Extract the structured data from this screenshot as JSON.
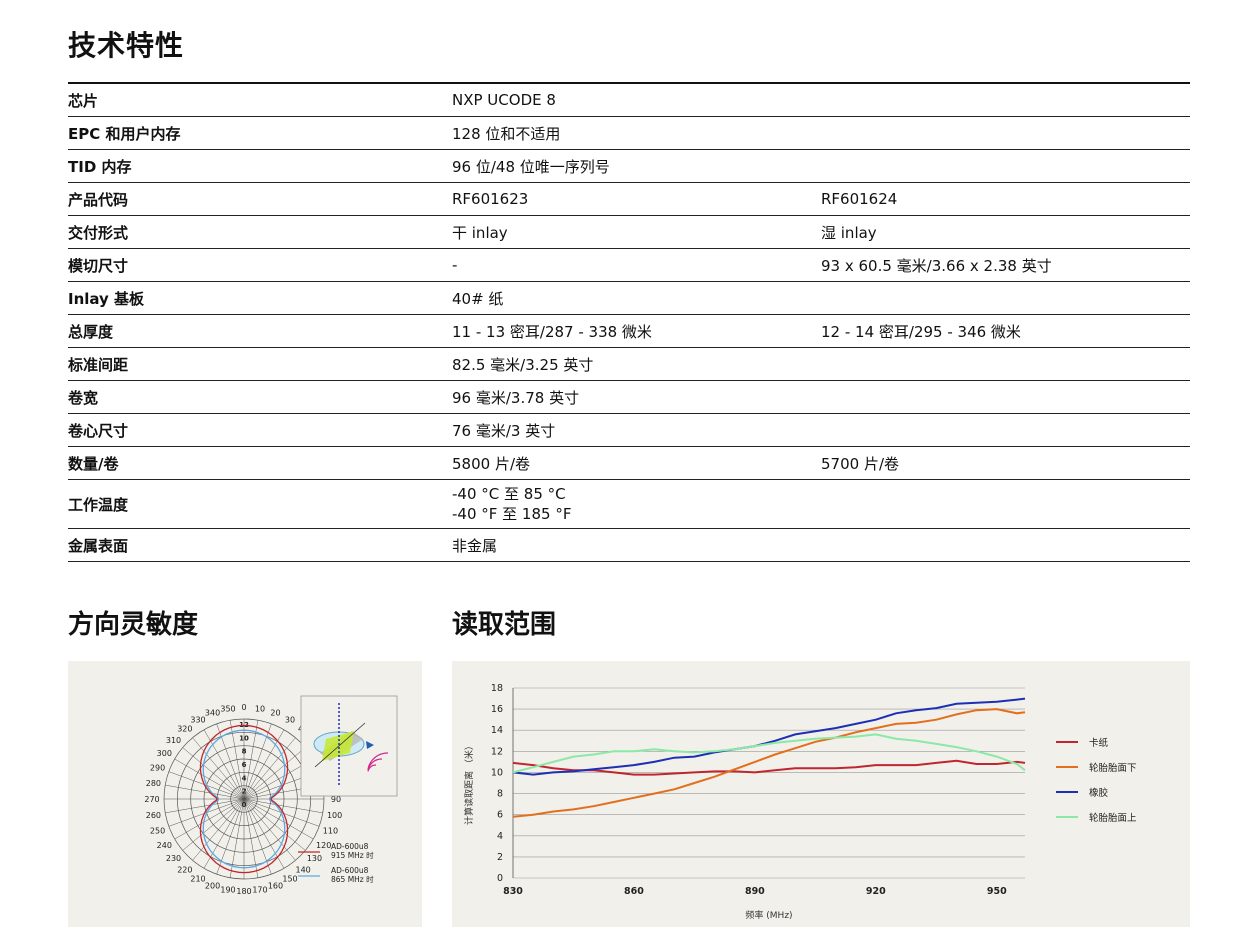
{
  "title": "技术特性",
  "specs": [
    {
      "key": "芯片",
      "v1": "NXP UCODE 8",
      "v2": ""
    },
    {
      "key": "EPC 和用户内存",
      "v1": "128 位和不适用",
      "v2": ""
    },
    {
      "key": "TID 内存",
      "v1": "96 位/48 位唯一序列号",
      "v2": ""
    },
    {
      "key": "产品代码",
      "v1": "RF601623",
      "v2": "RF601624"
    },
    {
      "key": "交付形式",
      "v1": "干 inlay",
      "v2": "湿 inlay"
    },
    {
      "key": "模切尺寸",
      "v1": "-",
      "v2": "93 x 60.5 毫米/3.66 x 2.38 英寸"
    },
    {
      "key": "Inlay 基板",
      "v1": "40# 纸",
      "v2": ""
    },
    {
      "key": "总厚度",
      "v1": "11 - 13 密耳/287 - 338 微米",
      "v2": "12 - 14 密耳/295 - 346 微米"
    },
    {
      "key": "标准间距",
      "v1": "82.5 毫米/3.25 英寸",
      "v2": ""
    },
    {
      "key": "卷宽",
      "v1": "96 毫米/3.78 英寸",
      "v2": ""
    },
    {
      "key": "卷心尺寸",
      "v1": "76 毫米/3 英寸",
      "v2": ""
    },
    {
      "key": "数量/卷",
      "v1": "5800 片/卷",
      "v2": "5700 片/卷"
    },
    {
      "key": "工作温度",
      "v1": "-40 °C 至 85 °C",
      "v1b": "-40 °F 至 185 °F",
      "v2": ""
    },
    {
      "key": "金属表面",
      "v1": "非金属",
      "v2": ""
    }
  ],
  "directional": {
    "title": "方向灵敏度",
    "angle_labels": [
      "0",
      "10",
      "20",
      "30",
      "40",
      "50",
      "60",
      "70",
      "80",
      "90",
      "100",
      "110",
      "120",
      "130",
      "140",
      "150",
      "160",
      "170",
      "180",
      "190",
      "200",
      "210",
      "220",
      "230",
      "240",
      "250",
      "260",
      "270",
      "280",
      "290",
      "300",
      "310",
      "320",
      "330",
      "340",
      "350"
    ],
    "radial_labels": [
      "12",
      "10",
      "8",
      "6",
      "4",
      "2",
      "0"
    ],
    "legend": [
      {
        "line1": "AD-600u8",
        "line2": "915 MHz 时",
        "color": "#c0262d"
      },
      {
        "line1": "AD-600u8",
        "line2": "865 MHz 时",
        "color": "#5aa9e6"
      }
    ]
  },
  "range": {
    "title": "读取范围",
    "chart_data": {
      "type": "line",
      "xlabel": "频率 (MHz)",
      "ylabel": "计算读取距离 （米）",
      "xlim": [
        830,
        957
      ],
      "ylim": [
        0,
        18
      ],
      "xticks": [
        830,
        860,
        890,
        920,
        950
      ],
      "yticks": [
        0,
        2,
        4,
        6,
        8,
        10,
        12,
        14,
        16,
        18
      ],
      "series": [
        {
          "name": "卡纸",
          "color": "#c0262d",
          "x": [
            830,
            835,
            840,
            845,
            850,
            855,
            860,
            865,
            870,
            875,
            880,
            885,
            890,
            895,
            900,
            905,
            910,
            915,
            920,
            925,
            930,
            935,
            940,
            945,
            950,
            955,
            957
          ],
          "y": [
            10.9,
            10.7,
            10.4,
            10.2,
            10.2,
            10.0,
            9.8,
            9.8,
            9.9,
            10.0,
            10.1,
            10.1,
            10.0,
            10.2,
            10.4,
            10.4,
            10.4,
            10.5,
            10.7,
            10.7,
            10.7,
            10.9,
            11.1,
            10.8,
            10.8,
            11.0,
            10.9
          ]
        },
        {
          "name": "轮胎胎面下",
          "color": "#e36f1e",
          "x": [
            830,
            835,
            840,
            845,
            850,
            855,
            860,
            865,
            870,
            875,
            880,
            885,
            890,
            895,
            900,
            905,
            910,
            915,
            920,
            925,
            930,
            935,
            940,
            945,
            950,
            955,
            957
          ],
          "y": [
            5.8,
            6.0,
            6.3,
            6.5,
            6.8,
            7.2,
            7.6,
            8.0,
            8.4,
            9.0,
            9.6,
            10.3,
            11.0,
            11.7,
            12.3,
            12.9,
            13.3,
            13.8,
            14.2,
            14.6,
            14.7,
            15.0,
            15.5,
            15.9,
            16.0,
            15.6,
            15.7
          ]
        },
        {
          "name": "橡胶",
          "color": "#1d2fb5",
          "x": [
            830,
            835,
            840,
            845,
            850,
            855,
            860,
            865,
            870,
            875,
            880,
            885,
            890,
            895,
            900,
            905,
            910,
            915,
            920,
            925,
            930,
            935,
            940,
            945,
            950,
            955,
            957
          ],
          "y": [
            10.0,
            9.8,
            10.0,
            10.1,
            10.3,
            10.5,
            10.7,
            11.0,
            11.4,
            11.5,
            11.9,
            12.2,
            12.5,
            13.0,
            13.6,
            13.9,
            14.2,
            14.6,
            15.0,
            15.6,
            15.9,
            16.1,
            16.5,
            16.6,
            16.7,
            16.9,
            17.0
          ]
        },
        {
          "name": "轮胎胎面上",
          "color": "#8ce8a6",
          "x": [
            830,
            835,
            840,
            845,
            850,
            855,
            860,
            865,
            870,
            875,
            880,
            885,
            890,
            895,
            900,
            905,
            910,
            915,
            920,
            925,
            930,
            935,
            940,
            945,
            950,
            955,
            957
          ],
          "y": [
            10.0,
            10.5,
            11.0,
            11.5,
            11.7,
            12.0,
            12.0,
            12.2,
            12.0,
            11.9,
            12.0,
            12.2,
            12.5,
            12.8,
            13.0,
            13.2,
            13.3,
            13.4,
            13.6,
            13.2,
            13.0,
            12.7,
            12.4,
            12.0,
            11.5,
            10.8,
            10.2
          ]
        }
      ]
    }
  }
}
